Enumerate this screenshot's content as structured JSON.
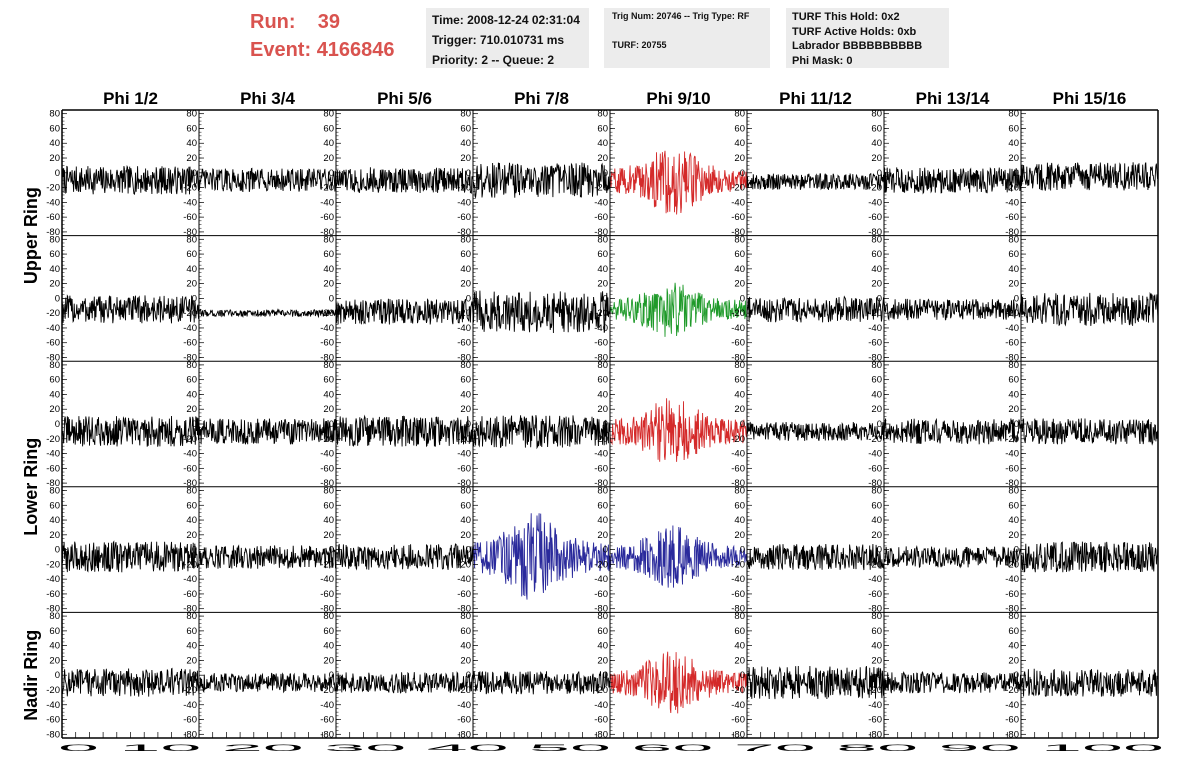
{
  "header": {
    "run_label": "Run:",
    "run_value": "39",
    "event_label": "Event:",
    "event_value": "4166846"
  },
  "info_box_1": {
    "time": "Time: 2008-12-24 02:31:04",
    "trigger": "Trigger: 710.010731 ms",
    "priority": "Priority: 2 -- Queue: 2"
  },
  "info_box_2": {
    "trig": "Trig Num: 20746 -- Trig Type: RF",
    "turf": "TURF: 20755"
  },
  "info_box_3": {
    "hold": "TURF This Hold: 0x2",
    "active": "TURF Active Holds: 0xb",
    "labrador": "Labrador BBBBBBBBBB",
    "phimask": "Phi Mask: 0"
  },
  "chart_data": {
    "type": "line",
    "columns": [
      "Phi 1/2",
      "Phi 3/4",
      "Phi 5/6",
      "Phi 7/8",
      "Phi 9/10",
      "Phi 11/12",
      "Phi 13/14",
      "Phi 15/16"
    ],
    "ring_labels": [
      "Upper Ring",
      "Lower Ring",
      "Nadir Ring"
    ],
    "xlim": [
      0,
      100
    ],
    "ylim": [
      -85,
      85
    ],
    "x_ticks": [
      0,
      10,
      20,
      30,
      40,
      50,
      60,
      70,
      80,
      90,
      100
    ],
    "y_ticks": [
      80,
      60,
      40,
      20,
      0,
      -20,
      -40,
      -60,
      -80
    ],
    "x_tick_label_strip": "0 10 20 30 40 50 60 70 80 90 100",
    "colors": {
      "normal": "#000000",
      "red": "#d42a2a",
      "green": "#1f9a2a",
      "blue": "#2a2a9c"
    },
    "panels": [
      {
        "row": 0,
        "col": 0,
        "color": "normal",
        "center": -10,
        "amp": 12
      },
      {
        "row": 0,
        "col": 1,
        "color": "normal",
        "center": -10,
        "amp": 10
      },
      {
        "row": 0,
        "col": 2,
        "color": "normal",
        "center": -10,
        "amp": 11
      },
      {
        "row": 0,
        "col": 3,
        "color": "normal",
        "center": -10,
        "amp": 15
      },
      {
        "row": 0,
        "col": 4,
        "color": "red",
        "center": -10,
        "amp": 22,
        "burst": true
      },
      {
        "row": 0,
        "col": 5,
        "color": "normal",
        "center": -12,
        "amp": 7
      },
      {
        "row": 0,
        "col": 6,
        "color": "normal",
        "center": -10,
        "amp": 11
      },
      {
        "row": 0,
        "col": 7,
        "color": "normal",
        "center": -5,
        "amp": 12
      },
      {
        "row": 1,
        "col": 0,
        "color": "normal",
        "center": -15,
        "amp": 12
      },
      {
        "row": 1,
        "col": 1,
        "color": "normal",
        "center": -20,
        "amp": 3
      },
      {
        "row": 1,
        "col": 2,
        "color": "normal",
        "center": -18,
        "amp": 11
      },
      {
        "row": 1,
        "col": 3,
        "color": "normal",
        "center": -18,
        "amp": 18
      },
      {
        "row": 1,
        "col": 4,
        "color": "green",
        "center": -15,
        "amp": 18,
        "burst": true
      },
      {
        "row": 1,
        "col": 5,
        "color": "normal",
        "center": -15,
        "amp": 11
      },
      {
        "row": 1,
        "col": 6,
        "color": "normal",
        "center": -15,
        "amp": 9
      },
      {
        "row": 1,
        "col": 7,
        "color": "normal",
        "center": -15,
        "amp": 14
      },
      {
        "row": 2,
        "col": 0,
        "color": "normal",
        "center": -10,
        "amp": 13
      },
      {
        "row": 2,
        "col": 1,
        "color": "normal",
        "center": -10,
        "amp": 11
      },
      {
        "row": 2,
        "col": 2,
        "color": "normal",
        "center": -10,
        "amp": 13
      },
      {
        "row": 2,
        "col": 3,
        "color": "normal",
        "center": -10,
        "amp": 14
      },
      {
        "row": 2,
        "col": 4,
        "color": "red",
        "center": -10,
        "amp": 22,
        "burst": true
      },
      {
        "row": 2,
        "col": 5,
        "color": "normal",
        "center": -10,
        "amp": 8
      },
      {
        "row": 2,
        "col": 6,
        "color": "normal",
        "center": -10,
        "amp": 11
      },
      {
        "row": 2,
        "col": 7,
        "color": "normal",
        "center": -10,
        "amp": 11
      },
      {
        "row": 3,
        "col": 0,
        "color": "normal",
        "center": -10,
        "amp": 13
      },
      {
        "row": 3,
        "col": 1,
        "color": "normal",
        "center": -10,
        "amp": 10
      },
      {
        "row": 3,
        "col": 2,
        "color": "normal",
        "center": -10,
        "amp": 11
      },
      {
        "row": 3,
        "col": 3,
        "color": "blue",
        "center": -10,
        "amp": 28,
        "burst": true
      },
      {
        "row": 3,
        "col": 4,
        "color": "blue",
        "center": -10,
        "amp": 20,
        "burst": true
      },
      {
        "row": 3,
        "col": 5,
        "color": "normal",
        "center": -10,
        "amp": 11
      },
      {
        "row": 3,
        "col": 6,
        "color": "normal",
        "center": -10,
        "amp": 9
      },
      {
        "row": 3,
        "col": 7,
        "color": "normal",
        "center": -10,
        "amp": 13
      },
      {
        "row": 4,
        "col": 0,
        "color": "normal",
        "center": -10,
        "amp": 12
      },
      {
        "row": 4,
        "col": 1,
        "color": "normal",
        "center": -10,
        "amp": 8
      },
      {
        "row": 4,
        "col": 2,
        "color": "normal",
        "center": -10,
        "amp": 9
      },
      {
        "row": 4,
        "col": 3,
        "color": "normal",
        "center": -10,
        "amp": 10
      },
      {
        "row": 4,
        "col": 4,
        "color": "red",
        "center": -10,
        "amp": 20,
        "burst": true
      },
      {
        "row": 4,
        "col": 5,
        "color": "normal",
        "center": -10,
        "amp": 14
      },
      {
        "row": 4,
        "col": 6,
        "color": "normal",
        "center": -10,
        "amp": 9
      },
      {
        "row": 4,
        "col": 7,
        "color": "normal",
        "center": -10,
        "amp": 12
      }
    ]
  }
}
